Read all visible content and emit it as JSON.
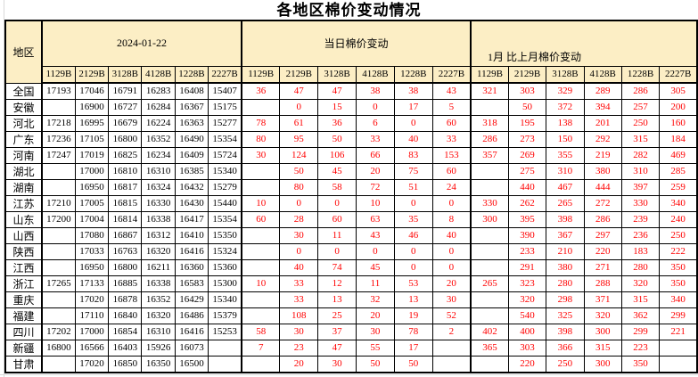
{
  "title": "各地区棉价变动情况",
  "table": {
    "region_header": "地区",
    "sections": [
      {
        "label": "2024-01-22",
        "key": "today",
        "sub": [
          "1129B",
          "2129B",
          "3128B",
          "4128B",
          "1228B",
          "2227B"
        ]
      },
      {
        "label": "当日棉价变动",
        "key": "daily_change",
        "sub": [
          "1129B",
          "2129B",
          "3128B",
          "4128B",
          "1228B",
          "2227B"
        ]
      },
      {
        "label": "1月 比上月棉价变动",
        "key": "monthly_change",
        "sub": [
          "1129B",
          "2129B",
          "3128B",
          "4128B",
          "1228B",
          "2227B"
        ]
      }
    ],
    "rows": [
      {
        "region": "全国",
        "today": [
          17193,
          17046,
          16791,
          16283,
          16408,
          15407
        ],
        "daily_change": [
          36,
          47,
          47,
          38,
          38,
          43
        ],
        "monthly_change": [
          321,
          303,
          329,
          289,
          286,
          305
        ]
      },
      {
        "region": "安徽",
        "today": [
          "",
          16900,
          16727,
          16284,
          16367,
          15175
        ],
        "daily_change": [
          "",
          0,
          15,
          0,
          17,
          5
        ],
        "monthly_change": [
          "",
          50,
          372,
          394,
          257,
          200
        ]
      },
      {
        "region": "河北",
        "today": [
          17218,
          16995,
          16679,
          16224,
          16363,
          15277
        ],
        "daily_change": [
          78,
          61,
          36,
          6,
          0,
          60
        ],
        "monthly_change": [
          318,
          195,
          138,
          201,
          250,
          160
        ]
      },
      {
        "region": "广东",
        "today": [
          17236,
          17105,
          16800,
          16352,
          16490,
          15354
        ],
        "daily_change": [
          80,
          95,
          50,
          33,
          40,
          33
        ],
        "monthly_change": [
          286,
          273,
          150,
          292,
          315,
          184
        ]
      },
      {
        "region": "河南",
        "today": [
          17247,
          17019,
          16825,
          16234,
          16409,
          15724
        ],
        "daily_change": [
          30,
          124,
          106,
          66,
          83,
          153
        ],
        "monthly_change": [
          357,
          269,
          355,
          219,
          282,
          469
        ]
      },
      {
        "region": "湖北",
        "today": [
          "",
          17000,
          16810,
          16310,
          16385,
          15340
        ],
        "daily_change": [
          "",
          50,
          45,
          20,
          75,
          60
        ],
        "monthly_change": [
          "",
          275,
          310,
          380,
          310,
          285
        ]
      },
      {
        "region": "湖南",
        "today": [
          "",
          16950,
          16817,
          16324,
          16432,
          15279
        ],
        "daily_change": [
          "",
          80,
          58,
          72,
          51,
          24
        ],
        "monthly_change": [
          "",
          440,
          467,
          444,
          397,
          259
        ]
      },
      {
        "region": "江苏",
        "today": [
          17210,
          17005,
          16815,
          16330,
          16430,
          15440
        ],
        "daily_change": [
          10,
          0,
          0,
          10,
          0,
          0
        ],
        "monthly_change": [
          330,
          262,
          265,
          272,
          330,
          340
        ]
      },
      {
        "region": "山东",
        "today": [
          17200,
          17004,
          16814,
          16338,
          16417,
          15354
        ],
        "daily_change": [
          60,
          28,
          60,
          63,
          35,
          8
        ],
        "monthly_change": [
          300,
          395,
          398,
          286,
          239,
          240
        ]
      },
      {
        "region": "山西",
        "today": [
          "",
          17080,
          16867,
          16312,
          16410,
          15350
        ],
        "daily_change": [
          "",
          30,
          11,
          43,
          46,
          40
        ],
        "monthly_change": [
          "",
          390,
          367,
          297,
          236,
          250
        ]
      },
      {
        "region": "陕西",
        "today": [
          "",
          17033,
          16763,
          16320,
          16416,
          15324
        ],
        "daily_change": [
          "",
          0,
          0,
          0,
          0,
          0
        ],
        "monthly_change": [
          "",
          233,
          210,
          220,
          183,
          222
        ]
      },
      {
        "region": "江西",
        "today": [
          "",
          16950,
          16800,
          16211,
          16360,
          15360
        ],
        "daily_change": [
          "",
          40,
          74,
          45,
          0,
          0
        ],
        "monthly_change": [
          "",
          291,
          380,
          271,
          280,
          350
        ]
      },
      {
        "region": "浙江",
        "today": [
          17265,
          17133,
          16885,
          16338,
          16583,
          15300
        ],
        "daily_change": [
          10,
          33,
          12,
          11,
          53,
          20
        ],
        "monthly_change": [
          265,
          323,
          280,
          288,
          320,
          350
        ]
      },
      {
        "region": "重庆",
        "today": [
          "",
          17020,
          16878,
          16352,
          16429,
          15340
        ],
        "daily_change": [
          "",
          33,
          13,
          32,
          13,
          30
        ],
        "monthly_change": [
          "",
          320,
          298,
          371,
          315,
          340
        ]
      },
      {
        "region": "福建",
        "today": [
          "",
          17110,
          16840,
          16320,
          16486,
          15379
        ],
        "daily_change": [
          "",
          108,
          25,
          20,
          19,
          52
        ],
        "monthly_change": [
          "",
          540,
          325,
          320,
          362,
          299
        ]
      },
      {
        "region": "四川",
        "today": [
          17202,
          17000,
          16854,
          16310,
          16416,
          15253
        ],
        "daily_change": [
          58,
          30,
          37,
          30,
          78,
          2
        ],
        "monthly_change": [
          402,
          400,
          398,
          300,
          299,
          221
        ]
      },
      {
        "region": "新疆",
        "today": [
          16800,
          16566,
          16403,
          15926,
          16073,
          ""
        ],
        "daily_change": [
          7,
          23,
          47,
          55,
          17,
          ""
        ],
        "monthly_change": [
          365,
          303,
          366,
          315,
          223,
          ""
        ]
      },
      {
        "region": "甘肃",
        "today": [
          "",
          17020,
          16850,
          16350,
          16500,
          ""
        ],
        "daily_change": [
          "",
          20,
          30,
          50,
          50,
          ""
        ],
        "monthly_change": [
          "",
          220,
          250,
          300,
          350,
          ""
        ]
      }
    ]
  },
  "colors": {
    "header_bg": "#FCEEC5",
    "change_value": "#FF0000",
    "border": "#000000",
    "gridline": "#D9D9D9"
  }
}
